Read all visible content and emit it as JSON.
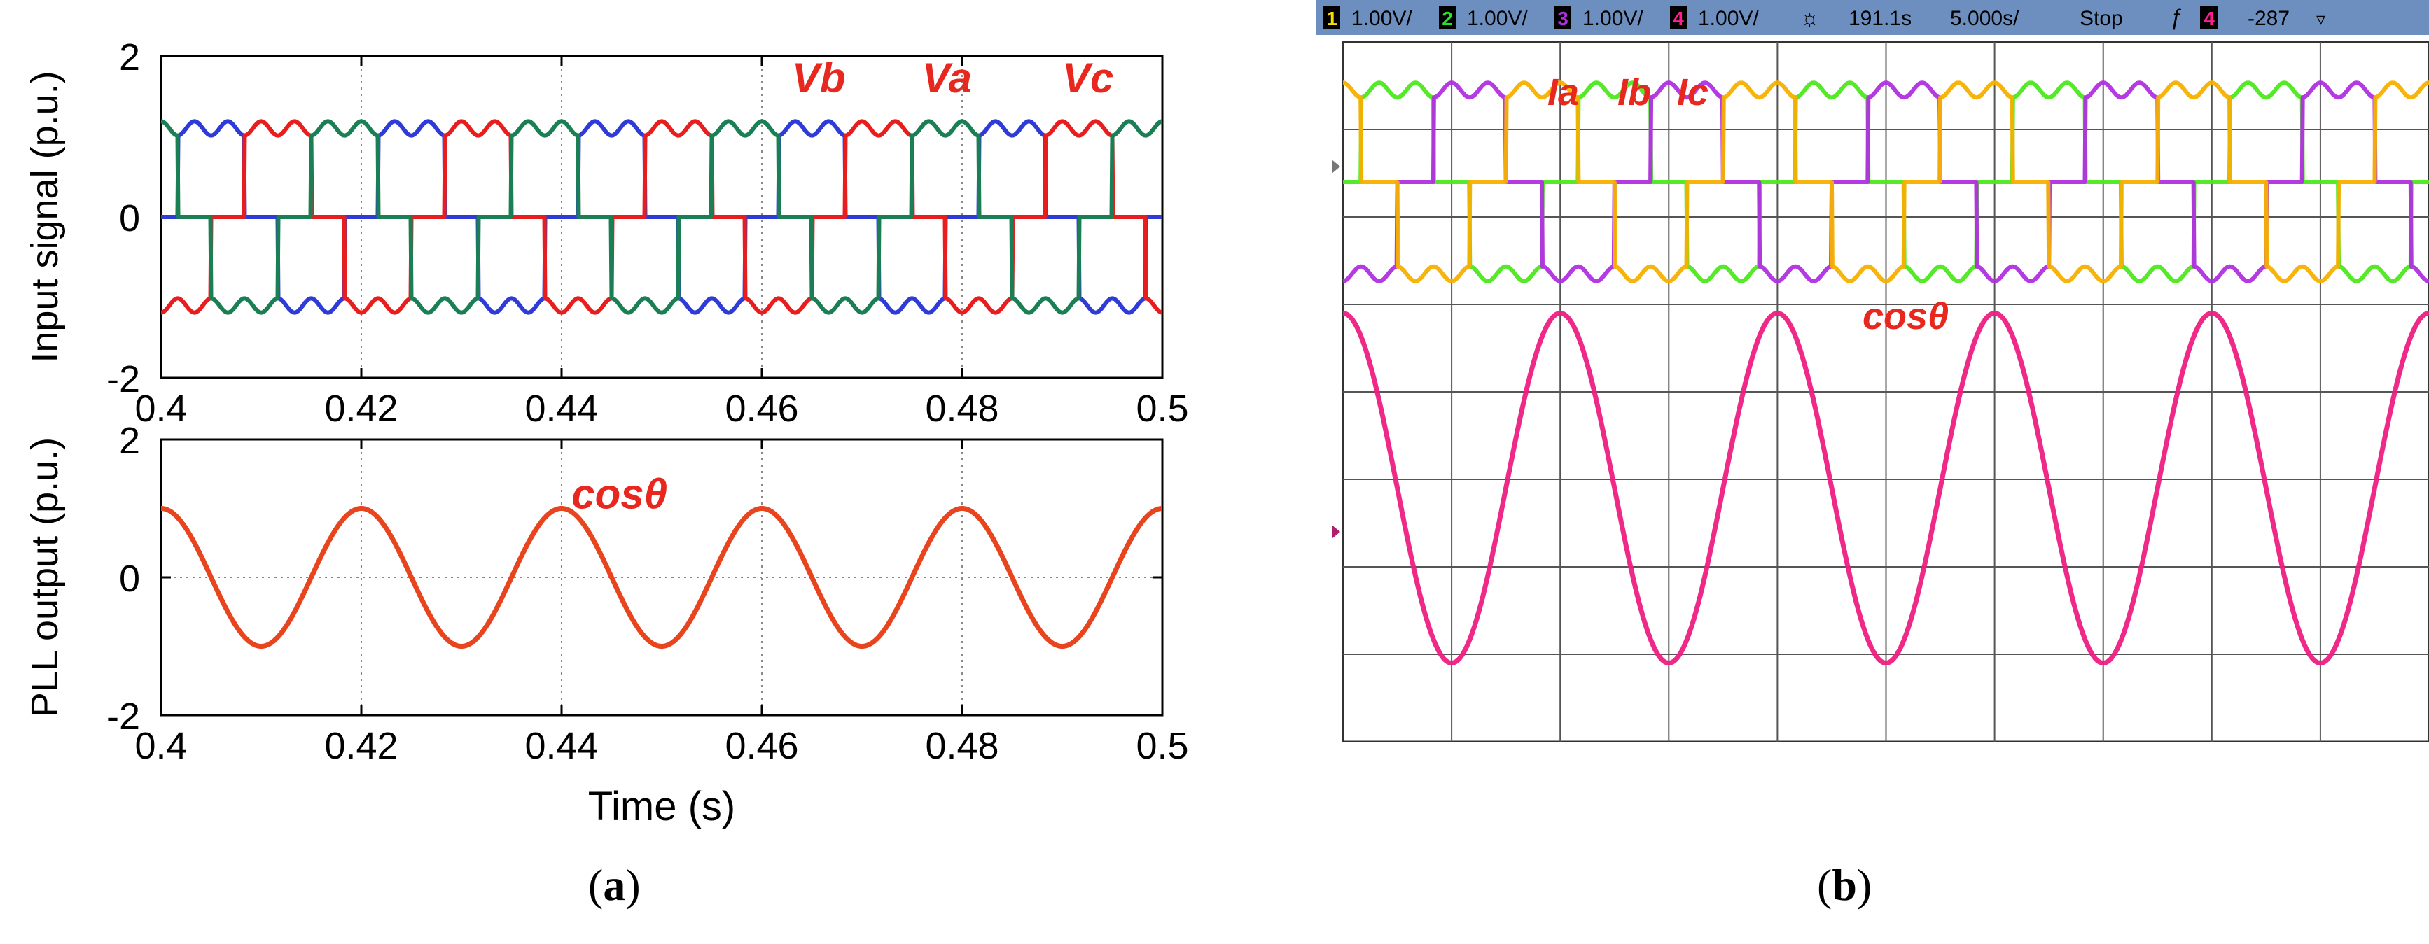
{
  "captions": {
    "a": {
      "open": "(",
      "letter": "a",
      "close": ")"
    },
    "b": {
      "open": "(",
      "letter": "b",
      "close": ")"
    }
  },
  "chart_data": [
    {
      "type": "line",
      "panel": "a-top",
      "ylabel": "Input signal (p.u.)",
      "xlabel": "",
      "xlim": [
        0.4,
        0.5
      ],
      "ylim": [
        -2,
        2
      ],
      "x_ticks": [
        "0.4",
        "0.42",
        "0.44",
        "0.46",
        "0.48",
        "0.5"
      ],
      "y_ticks": [
        "2",
        "0",
        "-2"
      ],
      "grid": true,
      "annotations": [
        {
          "text": "Vb",
          "x": 0.463,
          "y": 1.55,
          "color": "#e8281e"
        },
        {
          "text": "Va",
          "x": 0.476,
          "y": 1.55,
          "color": "#e8281e"
        },
        {
          "text": "Vc",
          "x": 0.49,
          "y": 1.55,
          "color": "#e8281e"
        }
      ],
      "frequency_hz": 50,
      "series": [
        {
          "label_ref": "Va",
          "color": "#2f3bd6",
          "amplitude": 1.1,
          "phase_deg": 0
        },
        {
          "label_ref": "Vb",
          "color": "#e81e1e",
          "amplitude": 1.1,
          "phase_deg": -120
        },
        {
          "label_ref": "Vc",
          "color": "#1b7f55",
          "amplitude": 1.1,
          "phase_deg": 120
        }
      ],
      "waveform": "quasi-square"
    },
    {
      "type": "line",
      "panel": "a-bottom",
      "ylabel": "PLL output (p.u.)",
      "xlabel": "Time (s)",
      "xlim": [
        0.4,
        0.5
      ],
      "ylim": [
        -2,
        2
      ],
      "x_ticks": [
        "0.4",
        "0.42",
        "0.44",
        "0.46",
        "0.48",
        "0.5"
      ],
      "y_ticks": [
        "2",
        "0",
        "-2"
      ],
      "grid": true,
      "annotations": [
        {
          "text": "cosθ",
          "x": 0.441,
          "y": 1.0,
          "color": "#e8281e"
        }
      ],
      "frequency_hz": 50,
      "series": [
        {
          "label_ref": "cosθ",
          "color": "#e8441e",
          "amplitude": 1.0,
          "phase_deg": 90
        }
      ]
    },
    {
      "type": "line",
      "panel": "b-scope",
      "header": {
        "channels": [
          {
            "num": "1",
            "scale": "1.00V/",
            "color": "#f5e000"
          },
          {
            "num": "2",
            "scale": "1.00V/",
            "color": "#1ee81e"
          },
          {
            "num": "3",
            "scale": "1.00V/",
            "color": "#b030e0"
          },
          {
            "num": "4",
            "scale": "1.00V/",
            "color": "#ff1e8c"
          }
        ],
        "trigger_icon": "☼",
        "time_position": "191.1s",
        "timebase": "5.000s/",
        "status": "Stop",
        "edge_icon": "ƒ",
        "trig_ch": "4",
        "trig_level": "-287",
        "trig_arrow": "▿"
      },
      "grid_divisions": {
        "x": 10,
        "y": 8
      },
      "annotations": [
        {
          "text": "Ia",
          "color": "#e8281e"
        },
        {
          "text": "Ib",
          "color": "#e8281e"
        },
        {
          "text": "Ic",
          "color": "#e8281e"
        },
        {
          "text": "cosθ",
          "color": "#e8281e"
        }
      ],
      "cycles_shown": 5,
      "series": [
        {
          "label_ref": "Ia",
          "color": "#4ce81e",
          "phase_deg": 0
        },
        {
          "label_ref": "Ib",
          "color": "#b030e0",
          "phase_deg": -120
        },
        {
          "label_ref": "Ic",
          "color": "#f5b000",
          "phase_deg": 120
        },
        {
          "label_ref": "cosθ",
          "color": "#ee1e82",
          "phase_deg": 90
        }
      ]
    }
  ]
}
